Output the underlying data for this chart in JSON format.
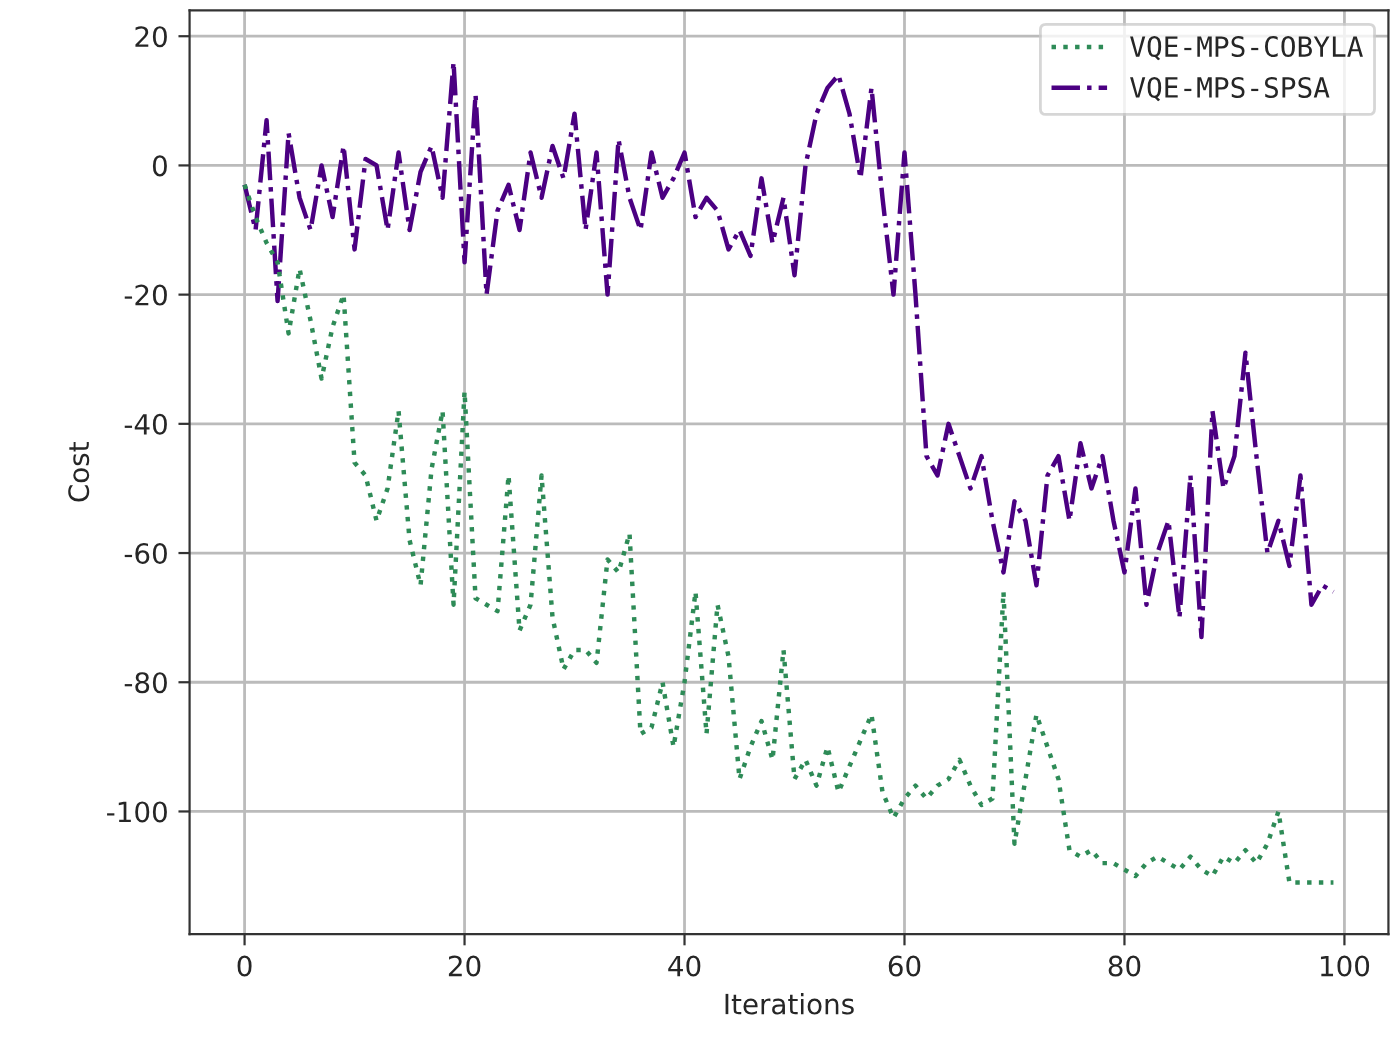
{
  "chart_data": {
    "type": "line",
    "xlabel": "Iterations",
    "ylabel": "Cost",
    "x": [
      0,
      1,
      2,
      3,
      4,
      5,
      6,
      7,
      8,
      9,
      10,
      11,
      12,
      13,
      14,
      15,
      16,
      17,
      18,
      19,
      20,
      21,
      22,
      23,
      24,
      25,
      26,
      27,
      28,
      29,
      30,
      31,
      32,
      33,
      34,
      35,
      36,
      37,
      38,
      39,
      40,
      41,
      42,
      43,
      44,
      45,
      46,
      47,
      48,
      49,
      50,
      51,
      52,
      53,
      54,
      55,
      56,
      57,
      58,
      59,
      60,
      61,
      62,
      63,
      64,
      65,
      66,
      67,
      68,
      69,
      70,
      71,
      72,
      73,
      74,
      75,
      76,
      77,
      78,
      79,
      80,
      81,
      82,
      83,
      84,
      85,
      86,
      87,
      88,
      89,
      90,
      91,
      92,
      93,
      94,
      95,
      96,
      97,
      98,
      99
    ],
    "series": [
      {
        "name": "VQE-MPS-COBYLA",
        "color": "#2e8b57",
        "line_style": "dotted",
        "values": [
          -3,
          -8,
          -12,
          -15,
          -26,
          -16,
          -24,
          -33,
          -25,
          -20,
          -46,
          -48,
          -55,
          -50,
          -38,
          -58,
          -65,
          -47,
          -38,
          -68,
          -35,
          -67,
          -68,
          -69,
          -48,
          -72,
          -68,
          -48,
          -70,
          -78,
          -75,
          -75,
          -77,
          -61,
          -63,
          -57,
          -88,
          -87,
          -80,
          -90,
          -80,
          -66,
          -88,
          -68,
          -76,
          -95,
          -90,
          -86,
          -92,
          -75,
          -95,
          -92,
          -96,
          -90,
          -97,
          -93,
          -89,
          -85,
          -97,
          -101,
          -98,
          -96,
          -98,
          -96,
          -95,
          -92,
          -96,
          -99,
          -98,
          -66,
          -105,
          -95,
          -85,
          -90,
          -95,
          -106,
          -107,
          -106,
          -108,
          -108,
          -109,
          -110,
          -108,
          -107,
          -108,
          -109,
          -107,
          -109,
          -110,
          -107,
          -108,
          -106,
          -108,
          -105,
          -100,
          -111,
          -111,
          -111,
          -111,
          -111
        ]
      },
      {
        "name": "VQE-MPS-SPSA",
        "color": "#4b0082",
        "line_style": "dashdot",
        "values": [
          -3,
          -10,
          7,
          -21,
          5,
          -5,
          -10,
          0,
          -8,
          3,
          -13,
          1,
          0,
          -10,
          2,
          -10,
          -1,
          3,
          -5,
          16,
          -15,
          11,
          -20,
          -7,
          -3,
          -10,
          2,
          -5,
          3,
          -2,
          8,
          -10,
          2,
          -20,
          4,
          -5,
          -10,
          2,
          -5,
          -2,
          2,
          -8,
          -5,
          -7,
          -13,
          -10,
          -14,
          -2,
          -12,
          -5,
          -17,
          0,
          8,
          12,
          14,
          8,
          -2,
          12,
          -5,
          -20,
          2,
          -20,
          -45,
          -48,
          -40,
          -45,
          -50,
          -45,
          -55,
          -63,
          -52,
          -55,
          -65,
          -48,
          -45,
          -55,
          -43,
          -50,
          -45,
          -55,
          -63,
          -50,
          -68,
          -60,
          -55,
          -70,
          -48,
          -73,
          -38,
          -50,
          -45,
          -29,
          -45,
          -60,
          -55,
          -62,
          -48,
          -68,
          -65,
          -66
        ]
      }
    ],
    "xlim": [
      -5,
      104
    ],
    "ylim": [
      -119,
      24
    ],
    "xticks": [
      0,
      20,
      40,
      60,
      80,
      100
    ],
    "yticks": [
      -100,
      -80,
      -60,
      -40,
      -20,
      0,
      20
    ],
    "grid": true,
    "legend": "top right",
    "marker": "none"
  }
}
